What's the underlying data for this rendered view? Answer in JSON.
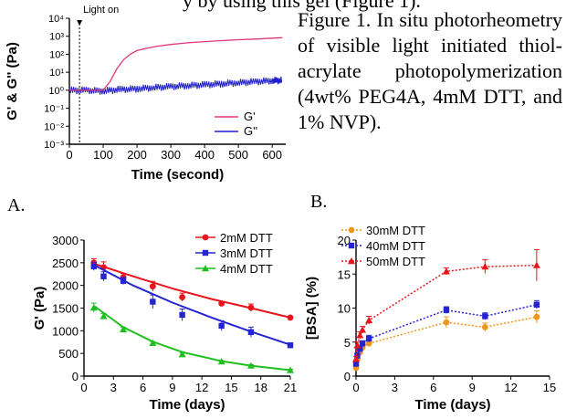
{
  "page": {
    "top_fragment": "y by using this gel (Figure 1).",
    "caption": "Figure 1. In situ photorheometry of visible light initiated thiol-acrylate photopolymerization (4wt% PEG4A, 4mM DTT, and 1% NVP).",
    "label_a": "A.",
    "label_b": "B."
  },
  "colors": {
    "pink": "#e0357b",
    "navy": "#1f1fc8",
    "red": "#e8141c",
    "blue": "#2424d0",
    "green": "#1fbf1f",
    "orange": "#f0961e"
  },
  "chart_data": [
    {
      "id": "fig1",
      "type": "line",
      "ylabel": "G' & G'' (Pa)",
      "xlabel": "Time (second)",
      "annotation": "Light on",
      "annotation_x": 30,
      "xlim": [
        0,
        640
      ],
      "xticks": [
        0,
        100,
        200,
        300,
        400,
        500,
        600
      ],
      "ylim_log10": [
        -3,
        4
      ],
      "yticks": [
        "10⁻³",
        "10⁻²",
        "10⁻¹",
        "10⁰",
        "10¹",
        "10²",
        "10³",
        "10⁴"
      ],
      "legend_position": "bottom-right",
      "series": [
        {
          "name": "G'",
          "color": "#e0357b",
          "x": [
            0,
            100,
            120,
            140,
            160,
            180,
            200,
            230,
            260,
            300,
            350,
            400,
            450,
            500,
            550,
            600,
            630
          ],
          "y": [
            1,
            1,
            3,
            15,
            50,
            100,
            160,
            220,
            280,
            350,
            430,
            500,
            570,
            640,
            700,
            780,
            830
          ]
        },
        {
          "name": "G''",
          "color": "#1f1fc8",
          "x": [
            0,
            50,
            100,
            150,
            200,
            250,
            300,
            350,
            400,
            450,
            500,
            550,
            600,
            630
          ],
          "y": [
            1,
            1,
            0.9,
            1.1,
            1.2,
            1.4,
            1.6,
            1.8,
            2.0,
            2.3,
            2.6,
            3.0,
            3.4,
            3.6
          ]
        }
      ]
    },
    {
      "id": "figA",
      "type": "line",
      "ylabel": "G' (Pa)",
      "xlabel": "Time (days)",
      "xlim": [
        0,
        21
      ],
      "xticks": [
        0,
        3,
        6,
        9,
        12,
        15,
        18,
        21
      ],
      "ylim": [
        0,
        3000
      ],
      "yticks": [
        0,
        500,
        1000,
        1500,
        2000,
        2500,
        3000
      ],
      "legend_position": "top-right",
      "series": [
        {
          "name": "2mM DTT",
          "color": "#e8141c",
          "x": [
            1,
            2,
            4,
            7,
            10,
            14,
            17,
            21
          ],
          "y": [
            2500,
            2400,
            2180,
            1980,
            1740,
            1600,
            1510,
            1290
          ],
          "err": [
            90,
            120,
            80,
            110,
            90,
            40,
            80,
            30
          ],
          "fit": [
            [
              1,
              2480
            ],
            [
              5,
              2200
            ],
            [
              9,
              1930
            ],
            [
              13,
              1700
            ],
            [
              17,
              1500
            ],
            [
              21,
              1290
            ]
          ]
        },
        {
          "name": "3mM DTT",
          "color": "#2424d0",
          "x": [
            1,
            2,
            4,
            7,
            10,
            14,
            17,
            21
          ],
          "y": [
            2420,
            2200,
            2100,
            1640,
            1350,
            1110,
            970,
            680
          ],
          "err": [
            90,
            100,
            80,
            150,
            130,
            110,
            110,
            40
          ],
          "fit": [
            [
              1,
              2450
            ],
            [
              5,
              2000
            ],
            [
              9,
              1620
            ],
            [
              13,
              1290
            ],
            [
              17,
              980
            ],
            [
              21,
              690
            ]
          ]
        },
        {
          "name": "4mM DTT",
          "color": "#1fbf1f",
          "x": [
            1,
            2,
            4,
            7,
            10,
            14,
            17,
            21
          ],
          "y": [
            1510,
            1320,
            1030,
            730,
            480,
            320,
            230,
            130
          ],
          "err": [
            100,
            60,
            50,
            30,
            30,
            20,
            20,
            20
          ],
          "fit": [
            [
              1,
              1550
            ],
            [
              4,
              1080
            ],
            [
              7,
              760
            ],
            [
              10,
              530
            ],
            [
              14,
              330
            ],
            [
              17,
              230
            ],
            [
              21,
              130
            ]
          ]
        }
      ]
    },
    {
      "id": "figB",
      "type": "line",
      "ylabel": "[BSA] (%)",
      "xlabel": "Time (days)",
      "xlim": [
        0,
        15
      ],
      "xticks": [
        0,
        3,
        6,
        9,
        12,
        15
      ],
      "ylim": [
        0,
        20
      ],
      "yticks": [
        0,
        5,
        10,
        15,
        20
      ],
      "legend_position": "top-left",
      "series": [
        {
          "name": "30mM DTT",
          "color": "#f0961e",
          "x": [
            0,
            0.1,
            0.3,
            0.5,
            1,
            7,
            10,
            14
          ],
          "y": [
            1.2,
            2.5,
            3.5,
            4.2,
            4.8,
            7.9,
            7.2,
            8.7
          ],
          "err": [
            0.3,
            0.4,
            0.4,
            0.4,
            0.4,
            0.8,
            0.6,
            0.9
          ]
        },
        {
          "name": "40mM DTT",
          "color": "#2424d0",
          "x": [
            0,
            0.1,
            0.3,
            0.5,
            1,
            7,
            10,
            14
          ],
          "y": [
            1.8,
            3.0,
            4.0,
            4.8,
            5.5,
            9.7,
            8.8,
            10.5
          ],
          "err": [
            0.3,
            0.4,
            0.4,
            0.4,
            0.5,
            0.5,
            0.5,
            0.6
          ]
        },
        {
          "name": "50mM DTT",
          "color": "#e8141c",
          "x": [
            0,
            0.1,
            0.3,
            0.5,
            1,
            7,
            10,
            14
          ],
          "y": [
            2.5,
            4.5,
            6.0,
            6.8,
            8.2,
            15.4,
            16.1,
            16.3
          ],
          "err": [
            0.4,
            0.5,
            0.5,
            0.5,
            0.6,
            0.5,
            1.0,
            2.3
          ]
        }
      ]
    }
  ]
}
